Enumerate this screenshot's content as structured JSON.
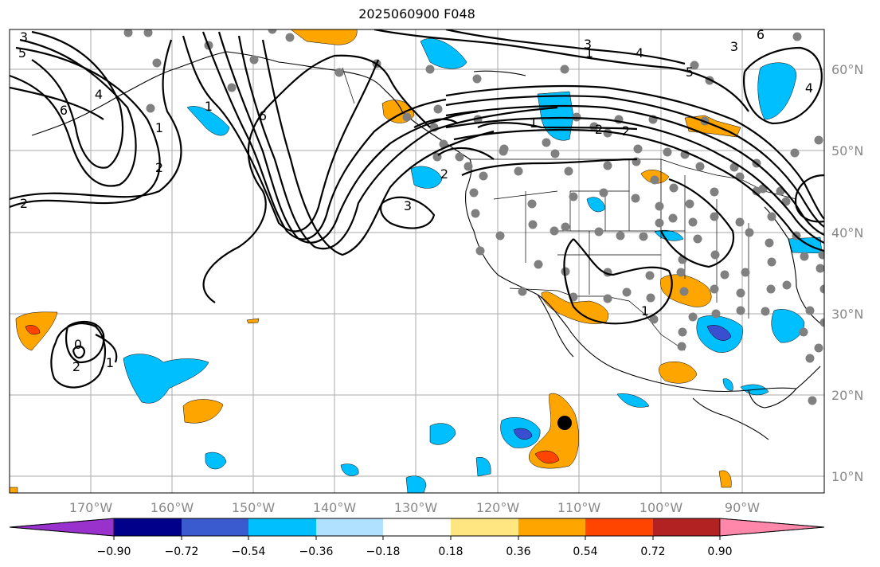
{
  "title": "2025060900 F048",
  "colors": {
    "grid": "#aaaaaa",
    "station": "#808080",
    "neg_strong": "#3a4fd0",
    "neg_mid": "#00bfff",
    "pos_mid": "#ffa500",
    "pos_strong": "#ff4500"
  },
  "axes": {
    "lon_labels": [
      "170°W",
      "160°W",
      "150°W",
      "140°W",
      "130°W",
      "120°W",
      "110°W",
      "100°W",
      "90°W"
    ],
    "lat_labels": [
      "60°N",
      "50°N",
      "40°N",
      "30°N",
      "20°N",
      "10°N"
    ]
  },
  "colorbar": {
    "colors": [
      "#9932cc",
      "#00008b",
      "#3a5ad0",
      "#00bfff",
      "#b0e2ff",
      "#ffffff",
      "#ffe680",
      "#ffa500",
      "#ff4500",
      "#b22222",
      "#ff88aa"
    ],
    "tick_labels": [
      "−0.90",
      "−0.72",
      "−0.54",
      "−0.36",
      "−0.18",
      "0.18",
      "0.36",
      "0.54",
      "0.72",
      "0.90"
    ]
  },
  "contour_labels": [
    "3",
    "5",
    "4",
    "6",
    "1",
    "2",
    "6",
    "1",
    "2",
    "3",
    "2",
    "3",
    "4",
    "5",
    "6",
    "3",
    "4",
    "1",
    "2",
    "1",
    "0",
    "2",
    "1",
    "2",
    "1"
  ]
}
